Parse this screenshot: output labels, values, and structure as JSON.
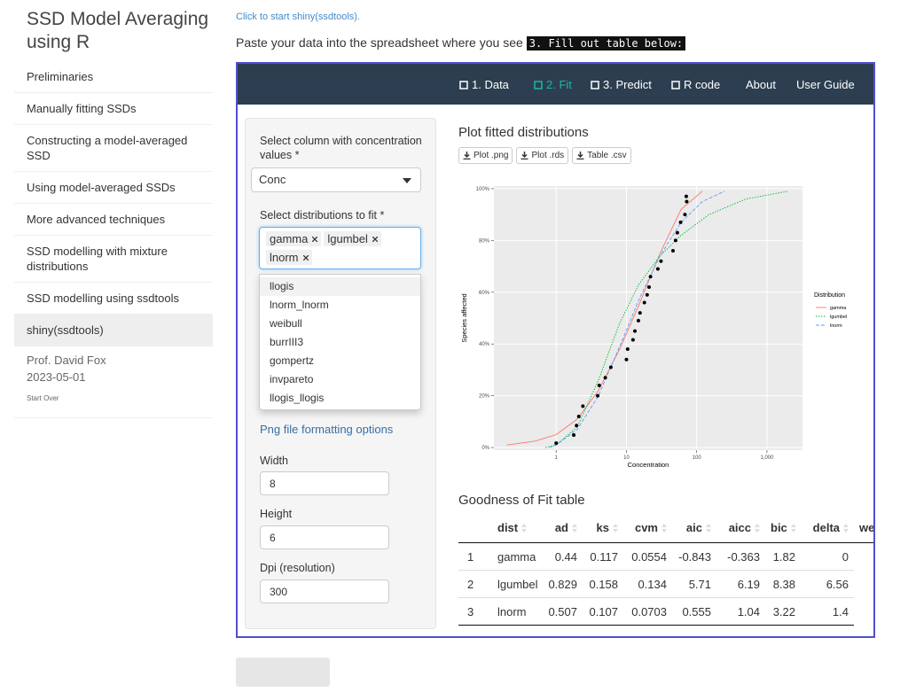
{
  "sidebar": {
    "title": "SSD Model Averaging using R",
    "items": [
      {
        "label": "Preliminaries",
        "active": false
      },
      {
        "label": "Manually fitting SSDs",
        "active": false
      },
      {
        "label": "Constructing a model-averaged SSD",
        "active": false
      },
      {
        "label": "Using model-averaged SSDs",
        "active": false
      },
      {
        "label": "More advanced techniques",
        "active": false
      },
      {
        "label": "SSD modelling with mixture distributions",
        "active": false
      },
      {
        "label": "SSD modelling using ssdtools",
        "active": false
      },
      {
        "label": "shiny(ssdtools)",
        "active": true
      }
    ],
    "author": "Prof. David Fox",
    "date": "2023-05-01",
    "start_over": "Start Over"
  },
  "intro": {
    "link": "Click to start shiny(ssdtools).",
    "text": "Paste your data into the spreadsheet where you see",
    "code": "3. Fill out table below:"
  },
  "app": {
    "tabs": [
      {
        "label": "1. Data",
        "active": false
      },
      {
        "label": "2. Fit",
        "active": true
      },
      {
        "label": "3. Predict",
        "active": false
      },
      {
        "label": "R code",
        "active": false
      },
      {
        "label": "About",
        "active": false
      },
      {
        "label": "User Guide",
        "active": false
      }
    ],
    "form": {
      "conc_label": "Select column with concentration values *",
      "conc_value": "Conc",
      "dist_label": "Select distributions to fit *",
      "selected": [
        "gamma",
        "lgumbel",
        "lnorm"
      ],
      "options": [
        "llogis",
        "lnorm_lnorm",
        "weibull",
        "burrIII3",
        "gompertz",
        "invpareto",
        "llogis_llogis"
      ],
      "png_options": "Png file formatting options",
      "width_label": "Width",
      "width": 8,
      "height_label": "Height",
      "height": 6,
      "dpi_label": "Dpi (resolution)",
      "dpi": 300
    },
    "plot_title": "Plot fitted distributions",
    "buttons": [
      "Plot .png",
      "Plot .rds",
      "Table .csv"
    ],
    "gof": {
      "title": "Goodness of Fit table",
      "columns": [
        "dist",
        "ad",
        "ks",
        "cvm",
        "aic",
        "aicc",
        "bic",
        "delta",
        "weight"
      ],
      "rows": [
        [
          1,
          "gamma",
          0.44,
          0.117,
          0.0554,
          -0.843,
          -0.363,
          1.82,
          0
        ],
        [
          2,
          "lgumbel",
          0.829,
          0.158,
          0.134,
          5.71,
          6.19,
          8.38,
          6.56
        ],
        [
          3,
          "lnorm",
          0.507,
          0.107,
          0.0703,
          0.555,
          1.04,
          3.22,
          1.4
        ]
      ]
    }
  },
  "chart_data": {
    "type": "scatter",
    "x_label": "Concentration",
    "y_label": "Species affected",
    "xscale": "log",
    "xlim": [
      0.13,
      3200
    ],
    "ylim": [
      -1,
      101
    ],
    "xticks": [
      1,
      10,
      100,
      {
        "value": 1000,
        "label": "1,000"
      }
    ],
    "yticks": [
      {
        "value": 0,
        "label": "0%"
      },
      {
        "value": 20,
        "label": "20%"
      },
      {
        "value": 40,
        "label": "40%"
      },
      {
        "value": 60,
        "label": "60%"
      },
      {
        "value": 80,
        "label": "80%"
      },
      {
        "value": 100,
        "label": "100%"
      }
    ],
    "grid": true,
    "legend_title": "Distribution",
    "points": {
      "color": "#000000",
      "x": [
        1,
        1.78,
        1.95,
        2.1,
        2.4,
        3.9,
        4.1,
        5.0,
        6.0,
        10,
        10.4,
        12.4,
        13.2,
        14.8,
        15.6,
        18,
        19.7,
        21,
        22,
        28,
        31,
        46,
        50,
        53,
        59,
        68,
        72,
        71
      ],
      "values": [
        1.7,
        4.8,
        8.5,
        12,
        16,
        20,
        24,
        27,
        31,
        34,
        38,
        41.6,
        45,
        49,
        52,
        56,
        59,
        62,
        66,
        69,
        72,
        76,
        80,
        83,
        87,
        90,
        95,
        97
      ]
    },
    "series": [
      {
        "name": "gamma",
        "color": "#F8766D",
        "linetype": "solid",
        "x": [
          0.2,
          0.5,
          1,
          2,
          4,
          8,
          15,
          30,
          60,
          120
        ],
        "values": [
          1,
          2.5,
          5,
          11,
          22,
          38,
          55,
          75,
          92,
          99
        ]
      },
      {
        "name": "lgumbel",
        "color": "#00BA38",
        "linetype": "dotted",
        "x": [
          0.7,
          1,
          2,
          4,
          8,
          15,
          30,
          60,
          150,
          500,
          2000
        ],
        "values": [
          0,
          1,
          8,
          26,
          48,
          63,
          74,
          82,
          90,
          96,
          99
        ]
      },
      {
        "name": "lnorm",
        "color": "#619CFF",
        "linetype": "dashed",
        "x": [
          0.8,
          1,
          2,
          4,
          8,
          15,
          30,
          60,
          120,
          250
        ],
        "values": [
          0,
          1,
          7,
          20,
          39,
          57,
          74,
          87,
          95,
          99
        ]
      }
    ]
  }
}
